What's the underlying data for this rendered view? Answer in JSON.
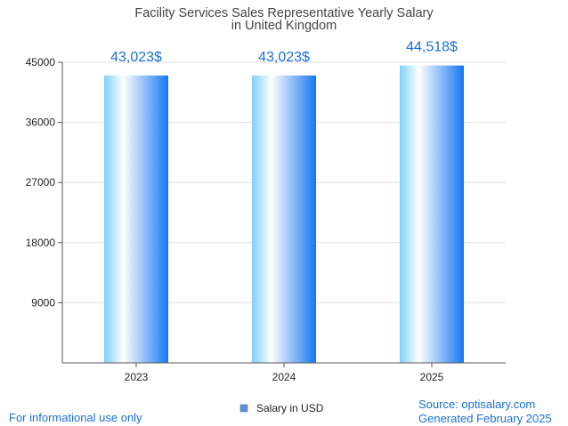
{
  "chart_data": {
    "type": "bar",
    "title": "Facility Services Sales Representative Yearly Salary",
    "subtitle": "in United Kingdom",
    "categories": [
      "2023",
      "2024",
      "2025"
    ],
    "series": [
      {
        "name": "Salary in USD",
        "values": [
          43023,
          43023,
          44518
        ]
      }
    ],
    "data_labels": [
      "43,023$",
      "43,023$",
      "44,518$"
    ],
    "yticks": [
      9000,
      18000,
      27000,
      36000,
      45000
    ],
    "ylim": [
      0,
      45000
    ],
    "grid": true,
    "legend_position": "bottom-center"
  },
  "colors": {
    "bar_light": "#c9f0ff",
    "bar_mid": "#7fd0fb",
    "bar_dark": "#1677f2",
    "label": "#1a6fd6",
    "title": "#444444",
    "grid": "#e0e0e0",
    "axis": "#555555"
  },
  "footer": {
    "disclaimer": "For informational use only",
    "source": "Source: optisalary.com",
    "generated": "Generated February 2025"
  }
}
